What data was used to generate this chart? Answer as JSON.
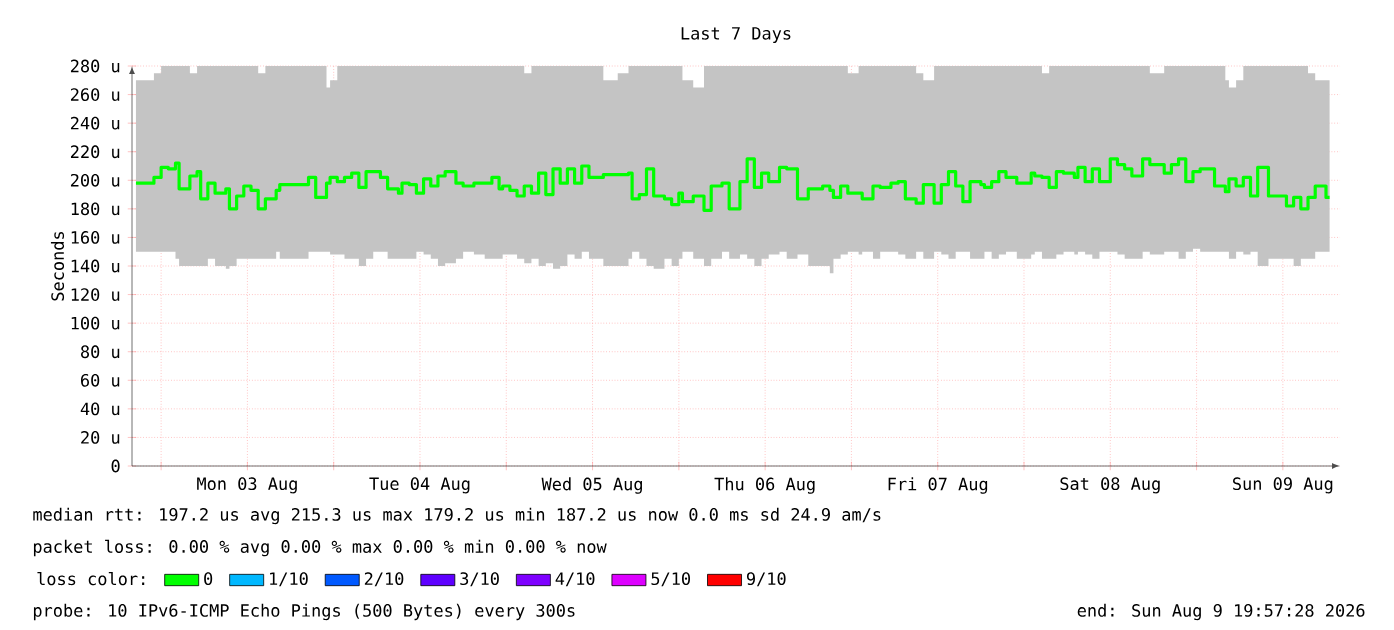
{
  "chart_data": {
    "type": "step",
    "title": "Last 7 Days",
    "ylabel": "Seconds",
    "xlim": [
      "2026-08-02T19:57",
      "2026-08-09T19:57"
    ],
    "xticks": [
      {
        "value": "2026-08-03T00:00",
        "label": null
      },
      {
        "value": "2026-08-03T12:00",
        "label": "Mon 03 Aug"
      },
      {
        "value": "2026-08-04T00:00",
        "label": null
      },
      {
        "value": "2026-08-04T12:00",
        "label": "Tue 04 Aug"
      },
      {
        "value": "2026-08-05T00:00",
        "label": null
      },
      {
        "value": "2026-08-05T12:00",
        "label": "Wed 05 Aug"
      },
      {
        "value": "2026-08-06T00:00",
        "label": null
      },
      {
        "value": "2026-08-06T12:00",
        "label": "Thu 06 Aug"
      },
      {
        "value": "2026-08-07T00:00",
        "label": null
      },
      {
        "value": "2026-08-07T12:00",
        "label": "Fri 07 Aug"
      },
      {
        "value": "2026-08-08T00:00",
        "label": null
      },
      {
        "value": "2026-08-08T12:00",
        "label": "Sat 08 Aug"
      },
      {
        "value": "2026-08-09T00:00",
        "label": null
      },
      {
        "value": "2026-08-09T12:00",
        "label": "Sun 09 Aug"
      }
    ],
    "ylim": [
      0,
      280
    ],
    "yticks": [
      0,
      {
        "value": 20,
        "label": "20 u"
      },
      {
        "value": 40,
        "label": "40 u"
      },
      {
        "value": 60,
        "label": "60 u"
      },
      {
        "value": 80,
        "label": "80 u"
      },
      {
        "value": 100,
        "label": "100 u"
      },
      {
        "value": 120,
        "label": "120 u"
      },
      {
        "value": 140,
        "label": "140 u"
      },
      {
        "value": 160,
        "label": "160 u"
      },
      {
        "value": 180,
        "label": "180 u"
      },
      {
        "value": 200,
        "label": "200 u"
      },
      {
        "value": 220,
        "label": "220 u"
      },
      {
        "value": 240,
        "label": "240 u"
      },
      {
        "value": 260,
        "label": "260 u"
      },
      {
        "value": 280,
        "label": "280 u"
      }
    ],
    "grid": true,
    "legend": "bottom",
    "legend_title": "loss color:",
    "marker": "none",
    "line_style": "solid",
    "x": [
      "2026-08-02T20:30",
      "2026-08-02T23:00",
      "2026-08-03T00:00",
      "2026-08-03T01:00",
      "2026-08-03T02:00",
      "2026-08-03T02:30",
      "2026-08-03T04:00",
      "2026-08-03T05:00",
      "2026-08-03T05:30",
      "2026-08-03T06:30",
      "2026-08-03T07:30",
      "2026-08-03T09:00",
      "2026-08-03T09:30",
      "2026-08-03T10:30",
      "2026-08-03T11:30",
      "2026-08-03T12:30",
      "2026-08-03T13:30",
      "2026-08-03T14:30",
      "2026-08-03T16:00",
      "2026-08-03T16:30",
      "2026-08-03T18:30",
      "2026-08-03T20:30",
      "2026-08-03T21:30",
      "2026-08-03T23:00",
      "2026-08-03T23:30",
      "2026-08-04T00:30",
      "2026-08-04T01:30",
      "2026-08-04T02:30",
      "2026-08-04T03:30",
      "2026-08-04T04:30",
      "2026-08-04T05:30",
      "2026-08-04T06:30",
      "2026-08-04T07:30",
      "2026-08-04T09:00",
      "2026-08-04T09:30",
      "2026-08-04T10:30",
      "2026-08-04T11:30",
      "2026-08-04T12:30",
      "2026-08-04T13:30",
      "2026-08-04T14:30",
      "2026-08-04T15:30",
      "2026-08-04T17:00",
      "2026-08-04T18:00",
      "2026-08-04T19:30",
      "2026-08-04T21:00",
      "2026-08-04T22:00",
      "2026-08-04T23:00",
      "2026-08-04T23:30",
      "2026-08-05T00:30",
      "2026-08-05T01:30",
      "2026-08-05T02:30",
      "2026-08-05T03:30",
      "2026-08-05T04:30",
      "2026-08-05T05:30",
      "2026-08-05T06:30",
      "2026-08-05T07:30",
      "2026-08-05T08:30",
      "2026-08-05T09:30",
      "2026-08-05T10:30",
      "2026-08-05T11:30",
      "2026-08-05T13:30",
      "2026-08-05T15:30",
      "2026-08-05T17:00",
      "2026-08-05T17:30",
      "2026-08-05T18:30",
      "2026-08-05T19:30",
      "2026-08-05T20:30",
      "2026-08-05T22:00",
      "2026-08-05T23:00",
      "2026-08-06T00:00",
      "2026-08-06T00:30",
      "2026-08-06T02:00",
      "2026-08-06T03:30",
      "2026-08-06T04:30",
      "2026-08-06T06:00",
      "2026-08-06T07:00",
      "2026-08-06T08:30",
      "2026-08-06T09:30",
      "2026-08-06T10:30",
      "2026-08-06T11:30",
      "2026-08-06T12:30",
      "2026-08-06T14:00",
      "2026-08-06T15:00",
      "2026-08-06T16:30",
      "2026-08-06T18:00",
      "2026-08-06T20:00",
      "2026-08-06T21:00",
      "2026-08-06T21:30",
      "2026-08-06T22:30",
      "2026-08-06T23:30",
      "2026-08-07T01:00",
      "2026-08-07T01:30",
      "2026-08-07T03:00",
      "2026-08-07T04:00",
      "2026-08-07T05:30",
      "2026-08-07T06:30",
      "2026-08-07T07:30",
      "2026-08-07T09:00",
      "2026-08-07T10:00",
      "2026-08-07T11:30",
      "2026-08-07T12:30",
      "2026-08-07T13:30",
      "2026-08-07T14:30",
      "2026-08-07T15:30",
      "2026-08-07T16:30",
      "2026-08-07T18:00",
      "2026-08-07T18:30",
      "2026-08-07T19:30",
      "2026-08-07T20:30",
      "2026-08-07T21:30",
      "2026-08-07T23:00",
      "2026-08-08T01:00",
      "2026-08-08T01:30",
      "2026-08-08T02:30",
      "2026-08-08T03:30",
      "2026-08-08T04:30",
      "2026-08-08T05:30",
      "2026-08-08T07:00",
      "2026-08-08T07:30",
      "2026-08-08T08:30",
      "2026-08-08T09:30",
      "2026-08-08T10:30",
      "2026-08-08T12:00",
      "2026-08-08T13:00",
      "2026-08-08T14:00",
      "2026-08-08T15:00",
      "2026-08-08T16:30",
      "2026-08-08T17:30",
      "2026-08-08T19:30",
      "2026-08-08T20:30",
      "2026-08-08T21:30",
      "2026-08-08T22:30",
      "2026-08-08T23:30",
      "2026-08-09T00:30",
      "2026-08-09T02:30",
      "2026-08-09T04:00",
      "2026-08-09T04:30",
      "2026-08-09T05:30",
      "2026-08-09T06:30",
      "2026-08-09T07:30",
      "2026-08-09T08:30",
      "2026-08-09T10:00",
      "2026-08-09T11:30",
      "2026-08-09T12:30",
      "2026-08-09T13:30",
      "2026-08-09T14:30",
      "2026-08-09T15:30",
      "2026-08-09T16:30",
      "2026-08-09T18:00",
      "2026-08-09T18:30"
    ],
    "series": [
      {
        "name": "0",
        "color": "#00ff00",
        "values": [
          198,
          202,
          209,
          208,
          212,
          194,
          203,
          206,
          187,
          198,
          191,
          194,
          180,
          189,
          196,
          193,
          180,
          187,
          193,
          197,
          197,
          202,
          188,
          198,
          202,
          199,
          202,
          205,
          195,
          206,
          206,
          202,
          194,
          191,
          198,
          197,
          191,
          201,
          196,
          203,
          206,
          198,
          196,
          198,
          198,
          202,
          194,
          196,
          193,
          189,
          196,
          191,
          205,
          190,
          208,
          198,
          208,
          198,
          210,
          202,
          204,
          204,
          205,
          187,
          190,
          208,
          189,
          187,
          183,
          191,
          185,
          189,
          179,
          196,
          198,
          180,
          199,
          215,
          195,
          205,
          199,
          209,
          208,
          187,
          194,
          196,
          193,
          188,
          196,
          191,
          191,
          187,
          196,
          195,
          198,
          199,
          187,
          184,
          197,
          184,
          197,
          206,
          196,
          185,
          199,
          197,
          195,
          199,
          206,
          202,
          198,
          205,
          203,
          202,
          195,
          206,
          205,
          202,
          209,
          199,
          208,
          199,
          215,
          211,
          208,
          203,
          215,
          211,
          205,
          211,
          215,
          199,
          206,
          208,
          196,
          192,
          201,
          196,
          202,
          189,
          209,
          189,
          189,
          182,
          188,
          180,
          188,
          196,
          188,
          188
        ],
        "lower": [
          155,
          150,
          150,
          150,
          150,
          145,
          140,
          140,
          140,
          140,
          145,
          140,
          138,
          140,
          145,
          145,
          145,
          145,
          145,
          150,
          145,
          145,
          150,
          150,
          150,
          148,
          148,
          145,
          145,
          140,
          145,
          150,
          150,
          145,
          145,
          145,
          145,
          150,
          148,
          145,
          140,
          142,
          145,
          150,
          148,
          145,
          145,
          145,
          148,
          148,
          145,
          142,
          145,
          140,
          142,
          138,
          140,
          148,
          145,
          150,
          145,
          140,
          140,
          145,
          150,
          145,
          140,
          138,
          145,
          140,
          145,
          150,
          145,
          140,
          145,
          150,
          145,
          148,
          145,
          140,
          145,
          148,
          150,
          145,
          148,
          140,
          140,
          135,
          145,
          148,
          150,
          148,
          150,
          145,
          150,
          150,
          148,
          145,
          150,
          145,
          150,
          148,
          145,
          150,
          150,
          145,
          145,
          150,
          145,
          148,
          150,
          145,
          148,
          150,
          145,
          145,
          148,
          150,
          148,
          150,
          148,
          145,
          150,
          150,
          148,
          145,
          145,
          150,
          148,
          150,
          150,
          145,
          150,
          152,
          150,
          150,
          150,
          145,
          150,
          148,
          150,
          140,
          145,
          145,
          145,
          140,
          145,
          145,
          150,
          150
        ],
        "upper": [
          270,
          275,
          280,
          280,
          280,
          280,
          275,
          280,
          280,
          280,
          280,
          280,
          280,
          280,
          280,
          280,
          275,
          280,
          280,
          280,
          280,
          280,
          280,
          265,
          270,
          280,
          280,
          280,
          280,
          280,
          280,
          280,
          280,
          280,
          280,
          280,
          280,
          280,
          280,
          280,
          280,
          280,
          280,
          280,
          280,
          280,
          280,
          280,
          280,
          280,
          275,
          280,
          280,
          280,
          280,
          280,
          280,
          280,
          280,
          280,
          270,
          275,
          280,
          280,
          280,
          280,
          280,
          280,
          280,
          280,
          270,
          265,
          280,
          280,
          280,
          280,
          280,
          280,
          280,
          280,
          280,
          280,
          280,
          280,
          280,
          280,
          280,
          280,
          280,
          275,
          280,
          280,
          280,
          280,
          280,
          280,
          280,
          275,
          270,
          280,
          280,
          280,
          280,
          280,
          280,
          280,
          280,
          280,
          280,
          280,
          280,
          280,
          280,
          275,
          280,
          280,
          280,
          280,
          280,
          280,
          280,
          280,
          280,
          280,
          280,
          280,
          280,
          275,
          280,
          280,
          280,
          280,
          280,
          280,
          280,
          270,
          265,
          270,
          280,
          280,
          280,
          280,
          280,
          280,
          280,
          280,
          275,
          270,
          270,
          270
        ]
      },
      {
        "name": "1/10",
        "color": "#00b8ff",
        "values": [
          null,
          null,
          null,
          null,
          null,
          null,
          null,
          null,
          null,
          null,
          null,
          null,
          null,
          null,
          null,
          null,
          null,
          null,
          null,
          null,
          null,
          null,
          null,
          null,
          null,
          null,
          null,
          null,
          null,
          null,
          null,
          null,
          null,
          null,
          null,
          null,
          null,
          null,
          null,
          null,
          null,
          null,
          null,
          null,
          null,
          null,
          null,
          null,
          null,
          null,
          null,
          null,
          null,
          null,
          null,
          null,
          null,
          null,
          null,
          null,
          null,
          null,
          null,
          null,
          null,
          null,
          null,
          null,
          null,
          null,
          null,
          null,
          null,
          null,
          null,
          null,
          null,
          null,
          null,
          null,
          null,
          null,
          null,
          null,
          null,
          null,
          null,
          null,
          null,
          null,
          null,
          null,
          null,
          null,
          null,
          null,
          null,
          null,
          null,
          null,
          null,
          null,
          null,
          null,
          null,
          null,
          null,
          null,
          null,
          null,
          null,
          null,
          null,
          null,
          null,
          null,
          null,
          null,
          null,
          null,
          null,
          null,
          null,
          null,
          null,
          null,
          null,
          null,
          null,
          null,
          null,
          null,
          null,
          null,
          null,
          null,
          null,
          null,
          null,
          null,
          null,
          null,
          null,
          null,
          null,
          null,
          null,
          null,
          null,
          null
        ]
      },
      {
        "name": "2/10",
        "color": "#0059ff",
        "values": [
          null,
          null,
          null,
          null,
          null,
          null,
          null,
          null,
          null,
          null,
          null,
          null,
          null,
          null,
          null,
          null,
          null,
          null,
          null,
          null,
          null,
          null,
          null,
          null,
          null,
          null,
          null,
          null,
          null,
          null,
          null,
          null,
          null,
          null,
          null,
          null,
          null,
          null,
          null,
          null,
          null,
          null,
          null,
          null,
          null,
          null,
          null,
          null,
          null,
          null,
          null,
          null,
          null,
          null,
          null,
          null,
          null,
          null,
          null,
          null,
          null,
          null,
          null,
          null,
          null,
          null,
          null,
          null,
          null,
          null,
          null,
          null,
          null,
          null,
          null,
          null,
          null,
          null,
          null,
          null,
          null,
          null,
          null,
          null,
          null,
          null,
          null,
          null,
          null,
          null,
          null,
          null,
          null,
          null,
          null,
          null,
          null,
          null,
          null,
          null,
          null,
          null,
          null,
          null,
          null,
          null,
          null,
          null,
          null,
          null,
          null,
          null,
          null,
          null,
          null,
          null,
          null,
          null,
          null,
          null,
          null,
          null,
          null,
          null,
          null,
          null,
          null,
          null,
          null,
          null,
          null,
          null,
          null,
          null,
          null,
          null,
          null,
          null,
          null,
          null,
          null,
          null,
          null,
          null,
          null,
          null,
          null,
          null,
          null,
          null
        ]
      },
      {
        "name": "3/10",
        "color": "#5e00ff",
        "values": [
          null,
          null,
          null,
          null,
          null,
          null,
          null,
          null,
          null,
          null,
          null,
          null,
          null,
          null,
          null,
          null,
          null,
          null,
          null,
          null,
          null,
          null,
          null,
          null,
          null,
          null,
          null,
          null,
          null,
          null,
          null,
          null,
          null,
          null,
          null,
          null,
          null,
          null,
          null,
          null,
          null,
          null,
          null,
          null,
          null,
          null,
          null,
          null,
          null,
          null,
          null,
          null,
          null,
          null,
          null,
          null,
          null,
          null,
          null,
          null,
          null,
          null,
          null,
          null,
          null,
          null,
          null,
          null,
          null,
          null,
          null,
          null,
          null,
          null,
          null,
          null,
          null,
          null,
          null,
          null,
          null,
          null,
          null,
          null,
          null,
          null,
          null,
          null,
          null,
          null,
          null,
          null,
          null,
          null,
          null,
          null,
          null,
          null,
          null,
          null,
          null,
          null,
          null,
          null,
          null,
          null,
          null,
          null,
          null,
          null,
          null,
          null,
          null,
          null,
          null,
          null,
          null,
          null,
          null,
          null,
          null,
          null,
          null,
          null,
          null,
          null,
          null,
          null,
          null,
          null,
          null,
          null,
          null,
          null,
          null,
          null,
          null,
          null,
          null,
          null,
          null,
          null,
          null,
          null,
          null,
          null,
          null,
          null,
          null,
          null
        ]
      },
      {
        "name": "4/10",
        "color": "#7e00ff",
        "values": [
          null,
          null,
          null,
          null,
          null,
          null,
          null,
          null,
          null,
          null,
          null,
          null,
          null,
          null,
          null,
          null,
          null,
          null,
          null,
          null,
          null,
          null,
          null,
          null,
          null,
          null,
          null,
          null,
          null,
          null,
          null,
          null,
          null,
          null,
          null,
          null,
          null,
          null,
          null,
          null,
          null,
          null,
          null,
          null,
          null,
          null,
          null,
          null,
          null,
          null,
          null,
          null,
          null,
          null,
          null,
          null,
          null,
          null,
          null,
          null,
          null,
          null,
          null,
          null,
          null,
          null,
          null,
          null,
          null,
          null,
          null,
          null,
          null,
          null,
          null,
          null,
          null,
          null,
          null,
          null,
          null,
          null,
          null,
          null,
          null,
          null,
          null,
          null,
          null,
          null,
          null,
          null,
          null,
          null,
          null,
          null,
          null,
          null,
          null,
          null,
          null,
          null,
          null,
          null,
          null,
          null,
          null,
          null,
          null,
          null,
          null,
          null,
          null,
          null,
          null,
          null,
          null,
          null,
          null,
          null,
          null,
          null,
          null,
          null,
          null,
          null,
          null,
          null,
          null,
          null,
          null,
          null,
          null,
          null,
          null,
          null,
          null,
          null,
          null,
          null,
          null,
          null,
          null,
          null,
          null,
          null,
          null,
          null,
          null,
          null
        ]
      },
      {
        "name": "5/10",
        "color": "#dd00ff",
        "values": [
          null,
          null,
          null,
          null,
          null,
          null,
          null,
          null,
          null,
          null,
          null,
          null,
          null,
          null,
          null,
          null,
          null,
          null,
          null,
          null,
          null,
          null,
          null,
          null,
          null,
          null,
          null,
          null,
          null,
          null,
          null,
          null,
          null,
          null,
          null,
          null,
          null,
          null,
          null,
          null,
          null,
          null,
          null,
          null,
          null,
          null,
          null,
          null,
          null,
          null,
          null,
          null,
          null,
          null,
          null,
          null,
          null,
          null,
          null,
          null,
          null,
          null,
          null,
          null,
          null,
          null,
          null,
          null,
          null,
          null,
          null,
          null,
          null,
          null,
          null,
          null,
          null,
          null,
          null,
          null,
          null,
          null,
          null,
          null,
          null,
          null,
          null,
          null,
          null,
          null,
          null,
          null,
          null,
          null,
          null,
          null,
          null,
          null,
          null,
          null,
          null,
          null,
          null,
          null,
          null,
          null,
          null,
          null,
          null,
          null,
          null,
          null,
          null,
          null,
          null,
          null,
          null,
          null,
          null,
          null,
          null,
          null,
          null,
          null,
          null,
          null,
          null,
          null,
          null,
          null,
          null,
          null,
          null,
          null,
          null,
          null,
          null,
          null,
          null,
          null,
          null,
          null,
          null,
          null,
          null,
          null,
          null,
          null,
          null,
          null
        ]
      },
      {
        "name": "9/10",
        "color": "#ff0000",
        "values": [
          null,
          null,
          null,
          null,
          null,
          null,
          null,
          null,
          null,
          null,
          null,
          null,
          null,
          null,
          null,
          null,
          null,
          null,
          null,
          null,
          null,
          null,
          null,
          null,
          null,
          null,
          null,
          null,
          null,
          null,
          null,
          null,
          null,
          null,
          null,
          null,
          null,
          null,
          null,
          null,
          null,
          null,
          null,
          null,
          null,
          null,
          null,
          null,
          null,
          null,
          null,
          null,
          null,
          null,
          null,
          null,
          null,
          null,
          null,
          null,
          null,
          null,
          null,
          null,
          null,
          null,
          null,
          null,
          null,
          null,
          null,
          null,
          null,
          null,
          null,
          null,
          null,
          null,
          null,
          null,
          null,
          null,
          null,
          null,
          null,
          null,
          null,
          null,
          null,
          null,
          null,
          null,
          null,
          null,
          null,
          null,
          null,
          null,
          null,
          null,
          null,
          null,
          null,
          null,
          null,
          null,
          null,
          null,
          null,
          null,
          null,
          null,
          null,
          null,
          null,
          null,
          null,
          null,
          null,
          null,
          null,
          null,
          null,
          null,
          null,
          null,
          null,
          null,
          null,
          null,
          null,
          null,
          null,
          null,
          null,
          null,
          null,
          null,
          null,
          null,
          null,
          null,
          null,
          null,
          null,
          null,
          null,
          null,
          null,
          null
        ]
      }
    ],
    "annotations": [
      "median rtt: 197.2 us avg 215.3 us max 179.2 us min 187.2 us now 0.0 ms sd 24.9 am/s",
      "packet loss: 0.00 % avg 0.00 % max 0.00 % min 0.00 % now",
      "probe: 10 IPv6-ICMP Echo Pings (500 Bytes) every 300s",
      "end: Sun Aug 9 19:57:28 2026"
    ]
  }
}
